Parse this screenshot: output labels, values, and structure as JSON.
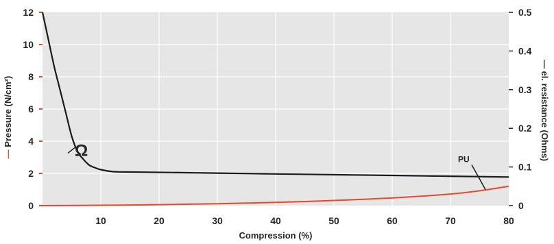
{
  "chart_data": {
    "type": "line",
    "xlabel": "Compression (%)",
    "ylabel_left": "Pressure (N/cm²)",
    "ylabel_right": "el. resistance (Ohms)",
    "xlim": [
      0,
      80
    ],
    "ylim_left": [
      0,
      12
    ],
    "ylim_right": [
      0,
      0.5
    ],
    "x_ticks": [
      "10",
      "20",
      "30",
      "40",
      "50",
      "60",
      "70",
      "80"
    ],
    "y_left_ticks": [
      "0",
      "2",
      "4",
      "6",
      "8",
      "10",
      "12"
    ],
    "y_right_ticks": [
      "0",
      "0.1",
      "0.2",
      "0.3",
      "0.4",
      "0.5"
    ],
    "grid": true,
    "colors": {
      "plot_background": "#e6e6e6",
      "grid": "#ffffff",
      "pressure": "#e8472a",
      "resistance": "#1a1a1a",
      "left_tick_marks": "#e8472a"
    },
    "series": [
      {
        "name": "Pressure (N/cm²)",
        "axis": "left",
        "x": [
          0,
          10,
          20,
          30,
          40,
          50,
          60,
          70,
          75,
          80
        ],
        "y": [
          0,
          0.02,
          0.06,
          0.12,
          0.2,
          0.32,
          0.48,
          0.72,
          0.92,
          1.2
        ]
      },
      {
        "name": "el. resistance (Ohms)",
        "axis": "right",
        "x": [
          0,
          1,
          2,
          3,
          4,
          5,
          6,
          7,
          8,
          9,
          10,
          12,
          14,
          20,
          30,
          40,
          50,
          60,
          70,
          80
        ],
        "y": [
          0.5,
          0.43,
          0.36,
          0.3,
          0.24,
          0.18,
          0.14,
          0.12,
          0.105,
          0.098,
          0.093,
          0.088,
          0.087,
          0.086,
          0.084,
          0.082,
          0.08,
          0.078,
          0.076,
          0.074
        ]
      }
    ],
    "annotations": [
      {
        "text": "Ω",
        "points_to": "el. resistance (Ohms)",
        "x": 6,
        "y_right": 0.15
      },
      {
        "text": "PU",
        "points_to": "Pressure (N/cm²)",
        "x": 76,
        "y_left": 1.0
      }
    ]
  }
}
